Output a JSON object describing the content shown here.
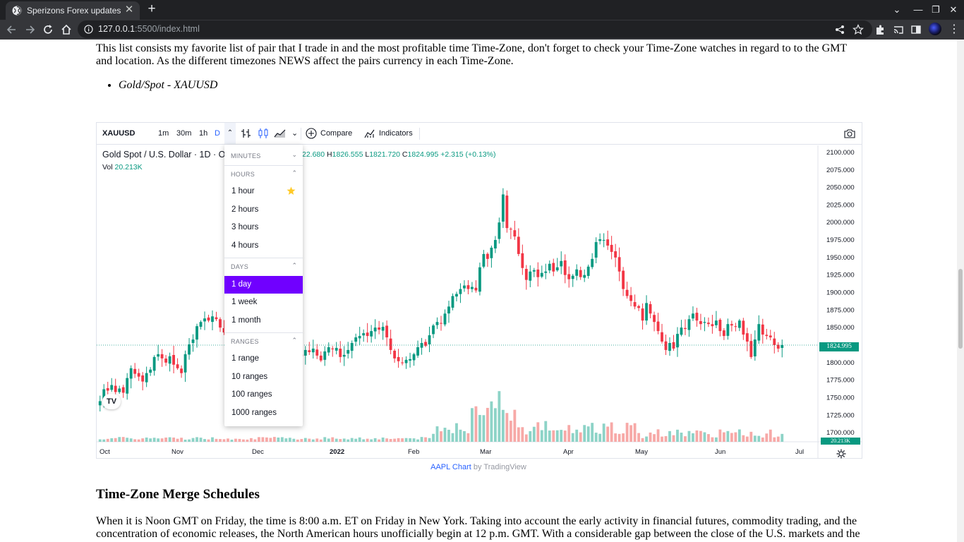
{
  "browser": {
    "tab_title": "Sperizons Forex updates",
    "url_host": "127.0.0.1",
    "url_rest": ":5500/index.html"
  },
  "article": {
    "intro": "This list consists my favorite list of pair that I trade in and the most profitable time Time-Zone, don't forget to check your Time-Zone watches in regard to to the GMT and location. As the different timezones NEWS affect the pairs currency in each Time-Zone.",
    "pairs": [
      "Gold/Spot - XAUUSD"
    ],
    "section_title": "Time-Zone Merge Schedules",
    "section_text": "When it is Noon GMT on Friday, the time is 8:00 a.m. ET on Friday in New York. Taking into account the early activity in financial futures, commodity trading, and the concentration of economic releases, the North American hours unofficially begin at 12 p.m. GMT. With a considerable gap between the close of the U.S. markets and the"
  },
  "widget": {
    "symbol": "XAUUSD",
    "intervals": [
      "1m",
      "30m",
      "1h",
      "D"
    ],
    "active_interval": "D",
    "compare_label": "Compare",
    "indicators_label": "Indicators",
    "legend_name": "Gold Spot / U.S. Dollar · 1D · O",
    "legend_ohlc": {
      "o_tail": "22.680",
      "h_label": "H",
      "h": "1826.555",
      "l_label": "L",
      "l": "1821.720",
      "c_label": "C",
      "c": "1824.995",
      "change": "+2.315 (+0.13%)"
    },
    "vol_label": "Vol",
    "vol_value": "20.213K",
    "price_tag": "1824.995",
    "vol_tag": "20.213K",
    "attribution_link": "AAPL Chart",
    "attribution_by": "by TradingView"
  },
  "dropdown": {
    "sections": [
      {
        "title": "MINUTES",
        "items": []
      },
      {
        "title": "HOURS",
        "items": [
          "1 hour",
          "2 hours",
          "3 hours",
          "4 hours"
        ]
      },
      {
        "title": "DAYS",
        "items": [
          "1 day",
          "1 week",
          "1 month"
        ]
      },
      {
        "title": "RANGES",
        "items": [
          "1 range",
          "10 ranges",
          "100 ranges",
          "1000 ranges"
        ]
      }
    ],
    "selected": "1 day",
    "favorite": "1 hour"
  },
  "colors": {
    "up": "#089981",
    "down": "#f23645",
    "up_volume": "#8dd3c7",
    "down_volume": "#f7a9a7",
    "accent": "#7000ff",
    "link": "#2962ff"
  },
  "chart_data": {
    "type": "candlestick",
    "title": "Gold Spot / U.S. Dollar · 1D",
    "y_ticks": [
      2100,
      2075,
      2050,
      2025,
      2000,
      1975,
      1950,
      1925,
      1900,
      1875,
      1850,
      1825,
      1800,
      1775,
      1750,
      1725,
      1700
    ],
    "ylim": [
      1687,
      2110
    ],
    "x_ticks": [
      "Oct",
      "Nov",
      "Dec",
      "2022",
      "Feb",
      "Mar",
      "Apr",
      "May",
      "Jun",
      "Jul"
    ],
    "last_price": 1824.995,
    "close_series": [
      1745,
      1762,
      1760,
      1768,
      1758,
      1763,
      1757,
      1778,
      1792,
      1784,
      1780,
      1773,
      1785,
      1790,
      1808,
      1812,
      1806,
      1800,
      1809,
      1797,
      1792,
      1785,
      1812,
      1826,
      1833,
      1852,
      1858,
      1863,
      1860,
      1866,
      1862,
      1850,
      1843,
      1838,
      1840,
      1835,
      1830,
      1825,
      1820,
      1815,
      1810,
      1808,
      1805,
      1800,
      1797,
      1792,
      1795,
      1800,
      1804,
      1808,
      1815,
      1812,
      1809,
      1818,
      1815,
      1820,
      1810,
      1803,
      1816,
      1822,
      1819,
      1821,
      1808,
      1811,
      1818,
      1828,
      1836,
      1838,
      1842,
      1838,
      1845,
      1850,
      1847,
      1851,
      1836,
      1818,
      1806,
      1802,
      1800,
      1804,
      1805,
      1812,
      1822,
      1828,
      1824,
      1839,
      1853,
      1858,
      1856,
      1870,
      1880,
      1895,
      1898,
      1905,
      1910,
      1905,
      1908,
      1903,
      1936,
      1955,
      1948,
      1964,
      1975,
      2000,
      2040,
      1992,
      1990,
      1980,
      1955,
      1935,
      1918,
      1930,
      1932,
      1922,
      1928,
      1930,
      1941,
      1930,
      1936,
      1945,
      1925,
      1919,
      1924,
      1933,
      1922,
      1925,
      1937,
      1948,
      1972,
      1976,
      1975,
      1967,
      1958,
      1950,
      1930,
      1905,
      1895,
      1888,
      1880,
      1878,
      1860,
      1885,
      1870,
      1858,
      1845,
      1830,
      1818,
      1828,
      1820,
      1841,
      1850,
      1848,
      1862,
      1870,
      1860,
      1855,
      1858,
      1855,
      1852,
      1860,
      1845,
      1838,
      1855,
      1853,
      1851,
      1860,
      1840,
      1830,
      1808,
      1833,
      1855,
      1840,
      1838,
      1836,
      1825,
      1820,
      1825
    ],
    "x_first_date": "2021-09-22",
    "x_last_date": "2022-06-24",
    "volume": {
      "min_shown": 0,
      "max_visible_bar": 96
    }
  }
}
